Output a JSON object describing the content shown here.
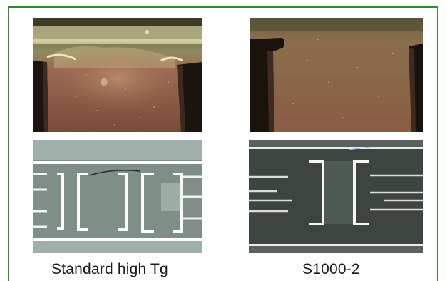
{
  "captions": {
    "left": "Standard high Tg",
    "right": "S1000-2"
  },
  "colors": {
    "frame_border": "#2f8a35",
    "caption_text": "#1a1a1a"
  }
}
